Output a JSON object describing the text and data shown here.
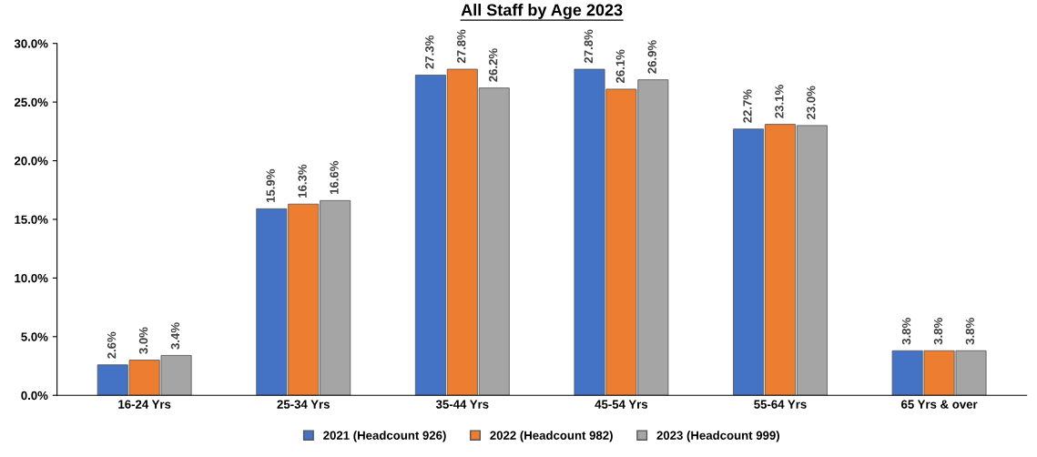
{
  "chart_data": {
    "type": "bar",
    "title": "All Staff by Age 2023",
    "categories": [
      "16-24 Yrs",
      "25-34 Yrs",
      "35-44 Yrs",
      "45-54 Yrs",
      "55-64 Yrs",
      "65 Yrs & over"
    ],
    "series": [
      {
        "name": "2021 (Headcount 926)",
        "color": "#4472c4",
        "values": [
          2.6,
          15.9,
          27.3,
          27.8,
          22.7,
          3.8
        ],
        "value_labels": [
          "2.6%",
          "15.9%",
          "27.3%",
          "27.8%",
          "22.7%",
          "3.8%"
        ]
      },
      {
        "name": "2022 (Headcount 982)",
        "color": "#ed7d31",
        "values": [
          3.0,
          16.3,
          27.8,
          26.1,
          23.1,
          3.8
        ],
        "value_labels": [
          "3.0%",
          "16.3%",
          "27.8%",
          "26.1%",
          "23.1%",
          "3.8%"
        ]
      },
      {
        "name": "2023 (Headcount 999)",
        "color": "#a5a5a5",
        "values": [
          3.4,
          16.6,
          26.2,
          26.9,
          23.0,
          3.8
        ],
        "value_labels": [
          "3.4%",
          "16.6%",
          "26.2%",
          "26.9%",
          "23.0%",
          "3.8%"
        ]
      }
    ],
    "ylim": [
      0,
      30
    ],
    "yticks": [
      {
        "value": 0,
        "label": "0.0%"
      },
      {
        "value": 5,
        "label": "5.0%"
      },
      {
        "value": 10,
        "label": "10.0%"
      },
      {
        "value": 15,
        "label": "15.0%"
      },
      {
        "value": 20,
        "label": "20.0%"
      },
      {
        "value": 25,
        "label": "25.0%"
      },
      {
        "value": 30,
        "label": "30.0%"
      }
    ],
    "grid": false,
    "legend": "bottom"
  }
}
